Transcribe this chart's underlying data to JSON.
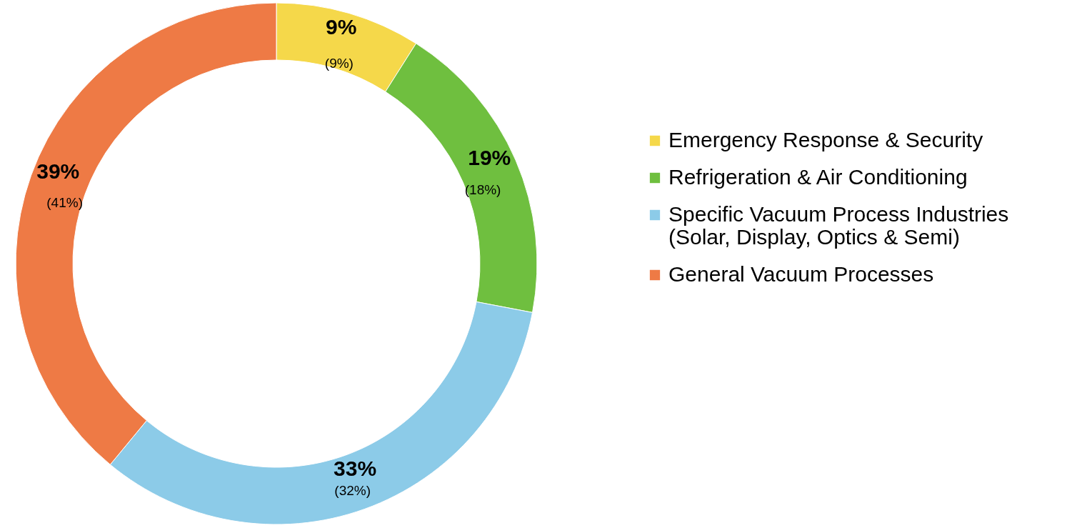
{
  "chart_data": {
    "type": "donut",
    "categories": [
      "Emergency Response & Security",
      "Refrigeration & Air Conditioning",
      "Specific Vacuum Process Industries\n(Solar, Display, Optics & Semi)",
      "General Vacuum Processes"
    ],
    "values": [
      9,
      19,
      33,
      39
    ],
    "colors": [
      "#f5d84a",
      "#6fbf3f",
      "#8ccbe8",
      "#ee7a45"
    ],
    "value_labels": [
      "9%",
      "19%",
      "33%",
      "39%"
    ],
    "legend": "right",
    "annotations": [
      {
        "text": "(9%)",
        "x": "Emergency Response & Security"
      },
      {
        "text": "(18%)",
        "x": "Refrigeration & Air Conditioning"
      },
      {
        "text": "(32%)",
        "x": "Specific Vacuum Process Industries\n(Solar, Display, Optics & Semi)"
      },
      {
        "text": "(41%)",
        "x": "General Vacuum Processes"
      }
    ]
  }
}
